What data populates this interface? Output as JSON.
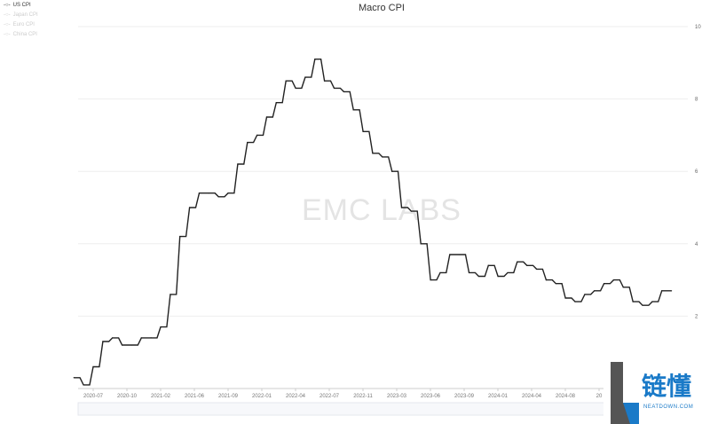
{
  "chart_data": {
    "type": "line",
    "title": "Macro CPI",
    "legend": [
      {
        "name": "US CPI",
        "active": true
      },
      {
        "name": "Japan CPI",
        "active": false
      },
      {
        "name": "Euro CPI",
        "active": false
      },
      {
        "name": "China CPI",
        "active": false
      }
    ],
    "legend_placement": "top-left",
    "watermark": "EMC LABS",
    "ylim": [
      0,
      10
    ],
    "yticks": [
      2,
      4,
      6,
      8,
      10
    ],
    "y_axis_side": "right",
    "grid": true,
    "xticks": [
      "2020-07",
      "2020-10",
      "2021-02",
      "2021-06",
      "2021-09",
      "2022-01",
      "2022-04",
      "2022-07",
      "2022-11",
      "2023-03",
      "2023-06",
      "2023-09",
      "2024-01",
      "2024-04",
      "2024-08",
      "20"
    ],
    "series": [
      {
        "name": "US CPI",
        "color": "#222222",
        "x": [
          "2020-05",
          "2020-06",
          "2020-07",
          "2020-08",
          "2020-09",
          "2020-10",
          "2020-11",
          "2020-12",
          "2021-01",
          "2021-02",
          "2021-03",
          "2021-04",
          "2021-05",
          "2021-06",
          "2021-07",
          "2021-08",
          "2021-09",
          "2021-10",
          "2021-11",
          "2021-12",
          "2022-01",
          "2022-02",
          "2022-03",
          "2022-04",
          "2022-05",
          "2022-06",
          "2022-07",
          "2022-08",
          "2022-09",
          "2022-10",
          "2022-11",
          "2022-12",
          "2023-01",
          "2023-02",
          "2023-03",
          "2023-04",
          "2023-05",
          "2023-06",
          "2023-07",
          "2023-08",
          "2023-09",
          "2023-10",
          "2023-11",
          "2023-12",
          "2024-01",
          "2024-02",
          "2024-03",
          "2024-04",
          "2024-05",
          "2024-06",
          "2024-07",
          "2024-08",
          "2024-09",
          "2024-10",
          "2024-11",
          "2024-12",
          "2025-01",
          "2025-02",
          "2025-03",
          "2025-04",
          "2025-05",
          "2025-06",
          "2025-07"
        ],
        "values": [
          0.3,
          0.1,
          0.6,
          1.3,
          1.4,
          1.2,
          1.2,
          1.4,
          1.4,
          1.7,
          2.6,
          4.2,
          5.0,
          5.4,
          5.4,
          5.3,
          5.4,
          6.2,
          6.8,
          7.0,
          7.5,
          7.9,
          8.5,
          8.3,
          8.6,
          9.1,
          8.5,
          8.3,
          8.2,
          7.7,
          7.1,
          6.5,
          6.4,
          6.0,
          5.0,
          4.9,
          4.0,
          3.0,
          3.2,
          3.7,
          3.7,
          3.2,
          3.1,
          3.4,
          3.1,
          3.2,
          3.5,
          3.4,
          3.3,
          3.0,
          2.9,
          2.5,
          2.4,
          2.6,
          2.7,
          2.9,
          3.0,
          2.8,
          2.4,
          2.3,
          2.4,
          2.7,
          2.7
        ]
      }
    ]
  },
  "logo": {
    "cn": "链懂",
    "en": "NEATDOWN.COM"
  }
}
